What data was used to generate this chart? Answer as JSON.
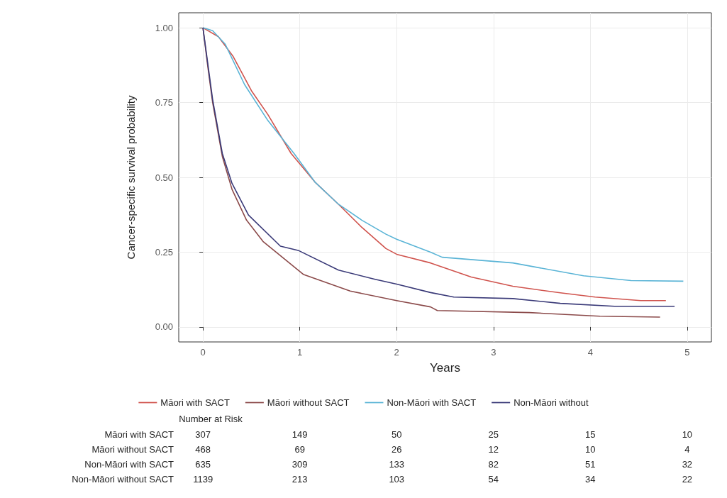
{
  "chart_data": {
    "type": "line",
    "xlabel": "Years",
    "ylabel": "Cancer-specific survival probability",
    "xlim": [
      -0.25,
      5.25
    ],
    "xticks": [
      0,
      1,
      2,
      3,
      4,
      5
    ],
    "ylim": [
      -0.05,
      1.05
    ],
    "yticks": [
      {
        "value": 0,
        "label": "0.00"
      },
      {
        "value": 0.25,
        "label": "0.25"
      },
      {
        "value": 0.5,
        "label": "0.50"
      },
      {
        "value": 0.75,
        "label": "0.75"
      },
      {
        "value": 1,
        "label": "1.00"
      }
    ],
    "grid": true,
    "legend": "bottom",
    "marker": "none",
    "line_style": "solid",
    "series": [
      {
        "name": "Māori with SACT",
        "color": "#d0544e",
        "x": [
          0,
          0.16,
          0.31,
          0.5,
          0.67,
          0.91,
          1.16,
          1.4,
          1.64,
          1.89,
          2,
          2.35,
          2.77,
          3.2,
          3.69,
          4.05,
          4.52,
          4.78
        ],
        "values": [
          1,
          0.97,
          0.905,
          0.79,
          0.71,
          0.58,
          0.483,
          0.41,
          0.333,
          0.262,
          0.243,
          0.214,
          0.167,
          0.136,
          0.114,
          0.1,
          0.088,
          0.088
        ]
      },
      {
        "name": "Māori without SACT",
        "color": "#8b4a4a",
        "x": [
          0,
          0.05,
          0.1,
          0.2,
          0.3,
          0.45,
          0.62,
          1.04,
          1.52,
          2,
          2.35,
          2.42,
          3.37,
          4.1,
          4.72
        ],
        "values": [
          1,
          0.87,
          0.75,
          0.57,
          0.46,
          0.357,
          0.286,
          0.175,
          0.12,
          0.088,
          0.067,
          0.055,
          0.048,
          0.036,
          0.033
        ]
      },
      {
        "name": "Non-Māori with SACT",
        "color": "#5ab4d6",
        "x": [
          0,
          0.1,
          0.23,
          0.43,
          0.67,
          0.94,
          1.16,
          1.4,
          1.64,
          1.89,
          2,
          2.35,
          2.47,
          3.2,
          3.93,
          4.42,
          4.96
        ],
        "values": [
          1,
          0.99,
          0.945,
          0.81,
          0.69,
          0.58,
          0.483,
          0.41,
          0.357,
          0.31,
          0.293,
          0.25,
          0.233,
          0.214,
          0.171,
          0.155,
          0.153
        ]
      },
      {
        "name": "Non-Māori without",
        "color": "#3a3a78",
        "x": [
          0,
          0.05,
          0.1,
          0.2,
          0.3,
          0.47,
          0.8,
          0.99,
          1.4,
          1.77,
          2,
          2.35,
          2.59,
          3.2,
          3.69,
          4.25,
          4.87
        ],
        "values": [
          1,
          0.88,
          0.76,
          0.58,
          0.48,
          0.374,
          0.27,
          0.255,
          0.19,
          0.16,
          0.143,
          0.115,
          0.1,
          0.095,
          0.079,
          0.069,
          0.069
        ]
      }
    ],
    "annotations": [
      "Number at Risk",
      "Māori with SACT",
      "307",
      "149",
      "50",
      "25",
      "15",
      "10",
      "Māori without SACT",
      "468",
      "69",
      "26",
      "12",
      "10",
      "4",
      "Non-Māori with SACT",
      "635",
      "309",
      "133",
      "82",
      "51",
      "32",
      "Non-Māori without SACT",
      "1139",
      "213",
      "103",
      "54",
      "34",
      "22"
    ]
  }
}
